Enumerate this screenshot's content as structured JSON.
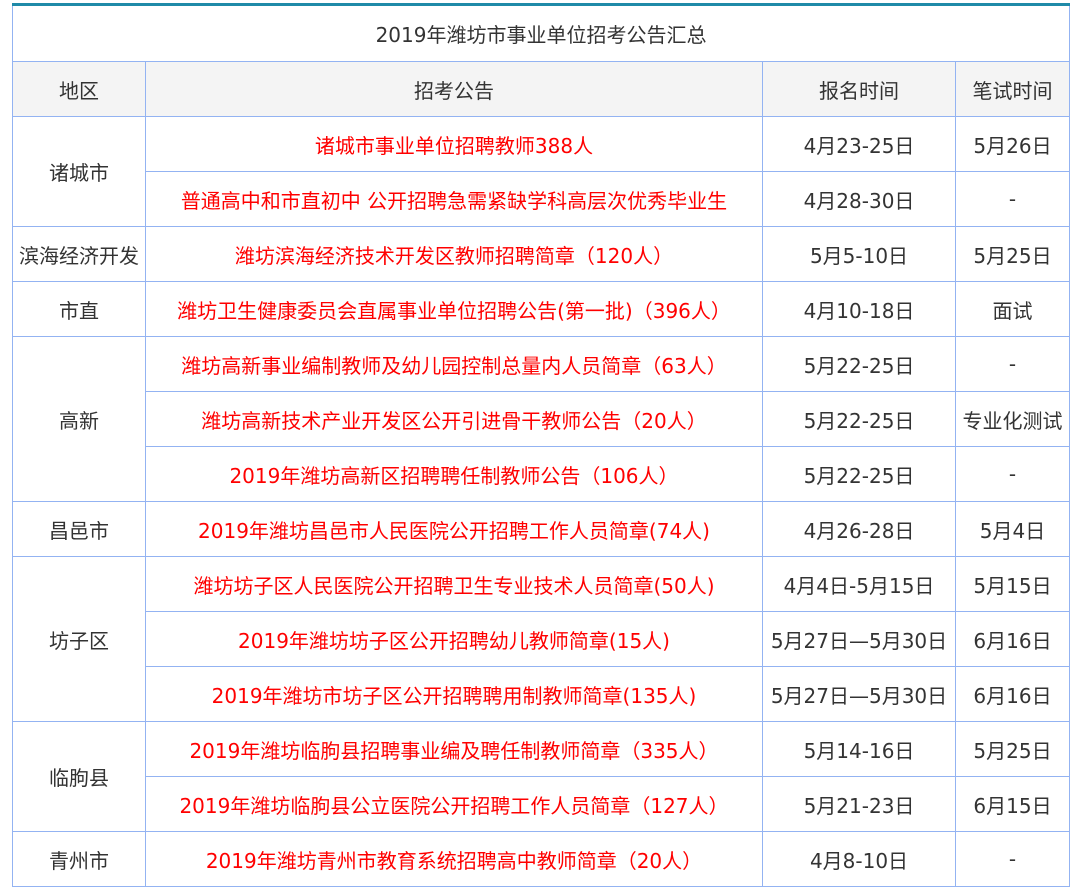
{
  "title": "2019年潍坊市事业单位招考公告汇总",
  "headers": [
    "地区",
    "招考公告",
    "报名时间",
    "笔试时间"
  ],
  "colors": {
    "announcement_text": "#ff0000",
    "border": "#93b3f2",
    "header_bg": "#f4f4f4",
    "top_border": "#1f8aa8"
  },
  "groups": [
    {
      "region": "诸城市",
      "rows": [
        {
          "announcement": "诸城市事业单位招聘教师388人",
          "signup": "4月23-25日",
          "exam": "5月26日"
        },
        {
          "announcement": "普通高中和市直初中 公开招聘急需紧缺学科高层次优秀毕业生",
          "signup": "4月28-30日",
          "exam": "-"
        }
      ]
    },
    {
      "region": "滨海经济开发",
      "rows": [
        {
          "announcement": "潍坊滨海经济技术开发区教师招聘简章（120人）",
          "signup": "5月5-10日",
          "exam": "5月25日"
        }
      ]
    },
    {
      "region": "市直",
      "rows": [
        {
          "announcement": "潍坊卫生健康委员会直属事业单位招聘公告(第一批)（396人）",
          "signup": "4月10-18日",
          "exam": "面试"
        }
      ]
    },
    {
      "region": "高新",
      "rows": [
        {
          "announcement": "潍坊高新事业编制教师及幼儿园控制总量内人员简章（63人）",
          "signup": "5月22-25日",
          "exam": "-"
        },
        {
          "announcement": "潍坊高新技术产业开发区公开引进骨干教师公告（20人）",
          "signup": "5月22-25日",
          "exam": "专业化测试"
        },
        {
          "announcement": "2019年潍坊高新区招聘聘任制教师公告（106人）",
          "signup": "5月22-25日",
          "exam": "-"
        }
      ]
    },
    {
      "region": "昌邑市",
      "rows": [
        {
          "announcement": "2019年潍坊昌邑市人民医院公开招聘工作人员简章(74人)",
          "signup": "4月26-28日",
          "exam": "5月4日"
        }
      ]
    },
    {
      "region": "坊子区",
      "rows": [
        {
          "announcement": "潍坊坊子区人民医院公开招聘卫生专业技术人员简章(50人)",
          "signup": "4月4日-5月15日",
          "exam": "5月15日"
        },
        {
          "announcement": "2019年潍坊坊子区公开招聘幼儿教师简章(15人)",
          "signup": "5月27日—5月30日",
          "exam": "6月16日"
        },
        {
          "announcement": "2019年潍坊市坊子区公开招聘聘用制教师简章(135人)",
          "signup": "5月27日—5月30日",
          "exam": "6月16日"
        }
      ]
    },
    {
      "region": "临朐县",
      "rows": [
        {
          "announcement": "2019年潍坊临朐县招聘事业编及聘任制教师简章（335人）",
          "signup": "5月14-16日",
          "exam": "5月25日"
        },
        {
          "announcement": "2019年潍坊临朐县公立医院公开招聘工作人员简章（127人）",
          "signup": "5月21-23日",
          "exam": "6月15日"
        }
      ]
    },
    {
      "region": "青州市",
      "rows": [
        {
          "announcement": "2019年潍坊青州市教育系统招聘高中教师简章（20人）",
          "signup": "4月8-10日",
          "exam": "-"
        }
      ]
    }
  ]
}
